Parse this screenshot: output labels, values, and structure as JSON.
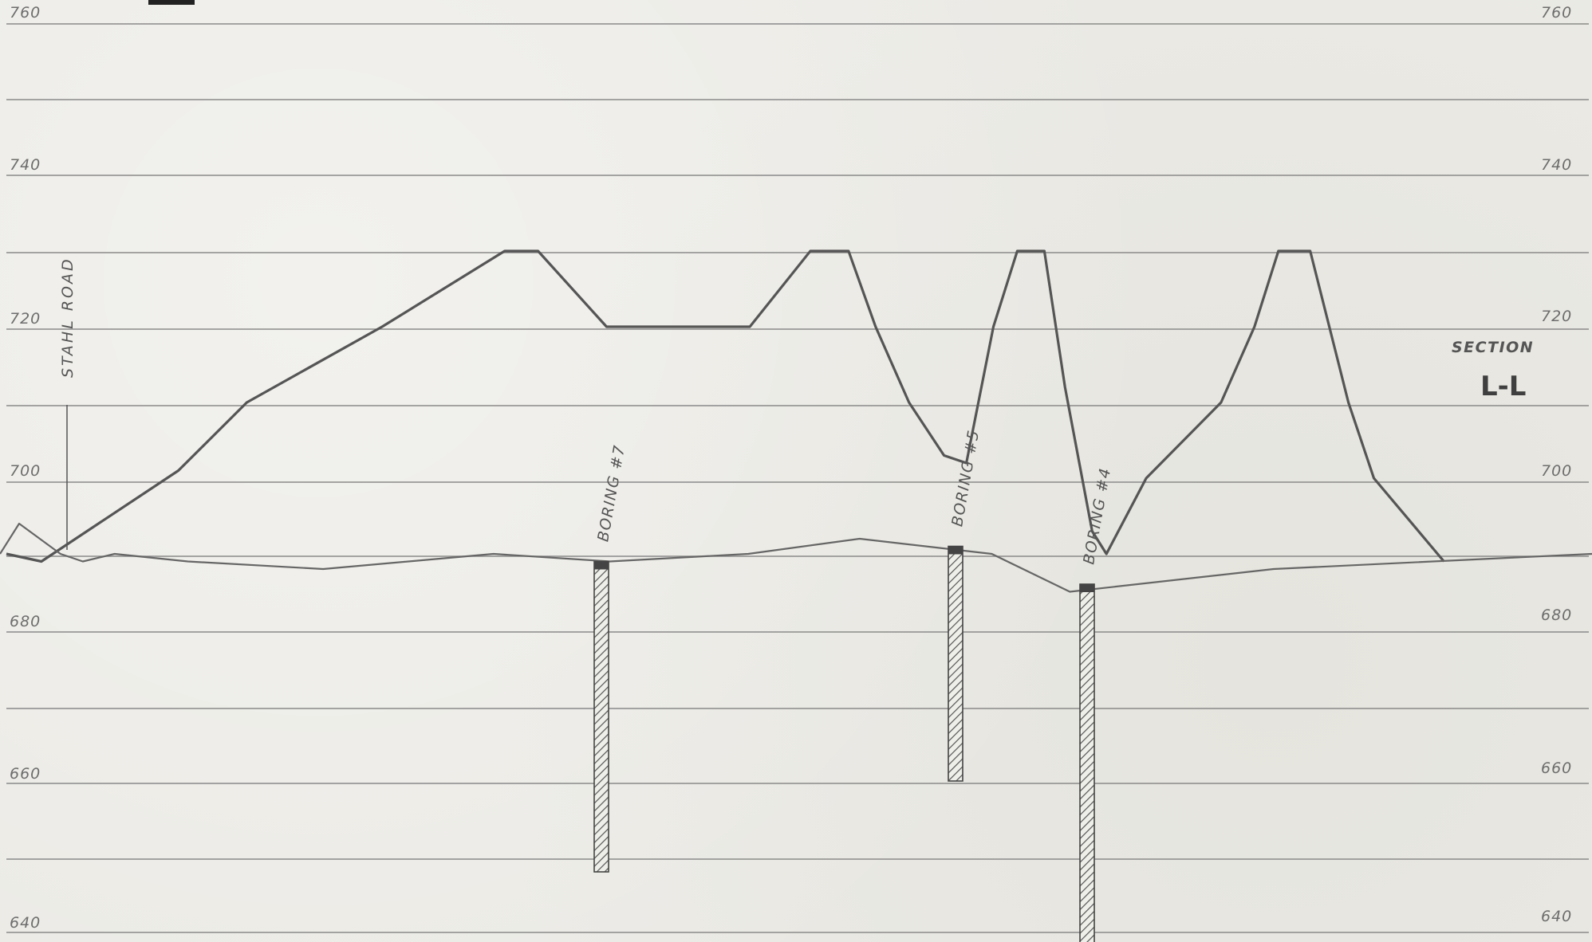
{
  "elevation_labels": {
    "e760": "760",
    "e740": "740",
    "e720": "720",
    "e700": "700",
    "e680": "680",
    "e660": "660",
    "e640": "640"
  },
  "road_label": "STAHL ROAD",
  "section": {
    "title": "SECTION",
    "mark": "L-L"
  },
  "borings": [
    {
      "label": "BORING #7",
      "top_elev": 689,
      "bottom_elev": 648
    },
    {
      "label": "BORING #5",
      "top_elev": 691,
      "bottom_elev": 660
    },
    {
      "label": "BORING #4",
      "top_elev": 686,
      "bottom_elev": 638
    }
  ],
  "profiles": {
    "upper": [
      [
        0.004,
        690
      ],
      [
        0.026,
        689
      ],
      [
        0.112,
        701
      ],
      [
        0.155,
        710
      ],
      [
        0.24,
        720
      ],
      [
        0.317,
        730
      ],
      [
        0.338,
        730
      ],
      [
        0.381,
        720
      ],
      [
        0.471,
        720
      ],
      [
        0.509,
        730
      ],
      [
        0.533,
        730
      ],
      [
        0.55,
        720
      ],
      [
        0.571,
        710
      ],
      [
        0.593,
        703
      ],
      [
        0.607,
        702
      ],
      [
        0.624,
        720
      ],
      [
        0.639,
        730
      ],
      [
        0.656,
        730
      ],
      [
        0.669,
        712
      ],
      [
        0.686,
        693
      ],
      [
        0.695,
        690
      ],
      [
        0.72,
        700
      ],
      [
        0.767,
        710
      ],
      [
        0.788,
        720
      ],
      [
        0.803,
        730
      ],
      [
        0.823,
        730
      ],
      [
        0.847,
        710
      ],
      [
        0.863,
        700
      ],
      [
        0.907,
        689
      ]
    ],
    "ground": [
      [
        0.0,
        690
      ],
      [
        0.012,
        694
      ],
      [
        0.038,
        690
      ],
      [
        0.052,
        689
      ],
      [
        0.072,
        690
      ],
      [
        0.118,
        689
      ],
      [
        0.203,
        688
      ],
      [
        0.31,
        690
      ],
      [
        0.383,
        689
      ],
      [
        0.47,
        690
      ],
      [
        0.54,
        692
      ],
      [
        0.623,
        690
      ],
      [
        0.672,
        685
      ],
      [
        0.8,
        688
      ],
      [
        1.0,
        690
      ]
    ]
  }
}
